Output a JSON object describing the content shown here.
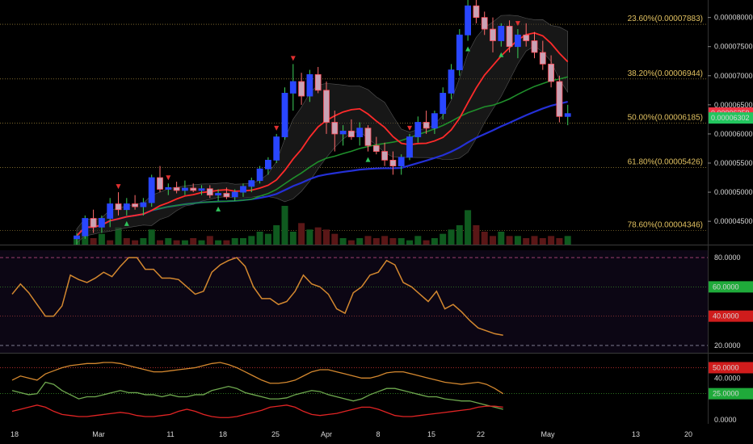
{
  "chart_data": {
    "type": "candlestick",
    "x_labels": [
      "18",
      "Mar",
      "11",
      "18",
      "25",
      "Apr",
      "8",
      "15",
      "22",
      "May",
      "13",
      "20"
    ],
    "price_axis": {
      "ticks": [
        "0.00008000",
        "0.00007500",
        "0.00007000",
        "0.00006500",
        "0.00006000",
        "0.00005500",
        "0.00005000",
        "0.00004500"
      ],
      "ylim": [
        4.1e-05,
        8.3e-05
      ],
      "last_price_label": "0.00006359",
      "other_price_label": "0.00006302",
      "last_price_color": "#f23645",
      "other_price_color": "#22c55e"
    },
    "fib_levels": [
      {
        "label": "23.60%(0.00007883)",
        "value": 7.883e-05
      },
      {
        "label": "38.20%(0.00006944)",
        "value": 6.944e-05
      },
      {
        "label": "50.00%(0.00006185)",
        "value": 6.185e-05
      },
      {
        "label": "61.80%(0.00005426)",
        "value": 5.426e-05
      },
      {
        "label": "78.60%(0.00004346)",
        "value": 4.346e-05
      }
    ],
    "candles": [
      [
        4.2e-05,
        4.3e-05,
        4.1e-05,
        4.25e-05
      ],
      [
        4.25e-05,
        4.6e-05,
        4.2e-05,
        4.55e-05
      ],
      [
        4.55e-05,
        4.7e-05,
        4.3e-05,
        4.4e-05
      ],
      [
        4.4e-05,
        4.6e-05,
        4.3e-05,
        4.55e-05
      ],
      [
        4.55e-05,
        4.9e-05,
        4.4e-05,
        4.8e-05
      ],
      [
        4.8e-05,
        5e-05,
        4.6e-05,
        4.7e-05
      ],
      [
        4.7e-05,
        4.9e-05,
        4.6e-05,
        4.8e-05
      ],
      [
        4.8e-05,
        4.95e-05,
        4.7e-05,
        4.75e-05
      ],
      [
        4.75e-05,
        4.9e-05,
        4.6e-05,
        4.82e-05
      ],
      [
        4.82e-05,
        5.3e-05,
        4.75e-05,
        5.25e-05
      ],
      [
        5.25e-05,
        5.45e-05,
        5e-05,
        5.05e-05
      ],
      [
        5.05e-05,
        5.15e-05,
        4.95e-05,
        5.08e-05
      ],
      [
        5.08e-05,
        5.18e-05,
        4.98e-05,
        5.03e-05
      ],
      [
        5.03e-05,
        5.2e-05,
        4.95e-05,
        5.07e-05
      ],
      [
        5.07e-05,
        5.15e-05,
        5e-05,
        5.03e-05
      ],
      [
        5.03e-05,
        5.12e-05,
        4.95e-05,
        5.06e-05
      ],
      [
        5.06e-05,
        5.12e-05,
        4.9e-05,
        4.95e-05
      ],
      [
        4.95e-05,
        5.05e-05,
        4.85e-05,
        4.98e-05
      ],
      [
        4.98e-05,
        5.08e-05,
        4.88e-05,
        4.92e-05
      ],
      [
        4.92e-05,
        5.05e-05,
        4.85e-05,
        5e-05
      ],
      [
        5e-05,
        5.15e-05,
        4.92e-05,
        5.1e-05
      ],
      [
        5.1e-05,
        5.25e-05,
        5e-05,
        5.2e-05
      ],
      [
        5.2e-05,
        5.45e-05,
        5.15e-05,
        5.4e-05
      ],
      [
        5.4e-05,
        5.6e-05,
        5.3e-05,
        5.55e-05
      ],
      [
        5.55e-05,
        6e-05,
        5.5e-05,
        5.95e-05
      ],
      [
        5.95e-05,
        6.8e-05,
        5.9e-05,
        6.7e-05
      ],
      [
        6.7e-05,
        7.2e-05,
        6.4e-05,
        6.9e-05
      ],
      [
        6.9e-05,
        7.05e-05,
        6.5e-05,
        6.65e-05
      ],
      [
        6.65e-05,
        7.1e-05,
        6.55e-05,
        7.02e-05
      ],
      [
        7.02e-05,
        7.15e-05,
        6.7e-05,
        6.75e-05
      ],
      [
        6.75e-05,
        6.9e-05,
        6e-05,
        6.2e-05
      ],
      [
        6.2e-05,
        6.4e-05,
        5.7e-05,
        6e-05
      ],
      [
        6e-05,
        6.15e-05,
        5.8e-05,
        6.05e-05
      ],
      [
        6.05e-05,
        6.25e-05,
        5.9e-05,
        5.95e-05
      ],
      [
        5.95e-05,
        6.2e-05,
        5.8e-05,
        6.1e-05
      ],
      [
        6.1e-05,
        6.15e-05,
        5.7e-05,
        5.8e-05
      ],
      [
        5.8e-05,
        5.95e-05,
        5.65e-05,
        5.7e-05
      ],
      [
        5.7e-05,
        5.85e-05,
        5.45e-05,
        5.55e-05
      ],
      [
        5.55e-05,
        5.7e-05,
        5.3e-05,
        5.45e-05
      ],
      [
        5.45e-05,
        5.65e-05,
        5.3e-05,
        5.6e-05
      ],
      [
        5.6e-05,
        6e-05,
        5.55e-05,
        5.95e-05
      ],
      [
        5.95e-05,
        6.3e-05,
        5.85e-05,
        6.2e-05
      ],
      [
        6.2e-05,
        6.4e-05,
        6e-05,
        6.1e-05
      ],
      [
        6.1e-05,
        6.4e-05,
        6e-05,
        6.35e-05
      ],
      [
        6.35e-05,
        6.8e-05,
        6.25e-05,
        6.7e-05
      ],
      [
        6.7e-05,
        7.2e-05,
        6.6e-05,
        7.1e-05
      ],
      [
        7.1e-05,
        7.8e-05,
        7e-05,
        7.7e-05
      ],
      [
        7.7e-05,
        8.3e-05,
        7.6e-05,
        8.2e-05
      ],
      [
        8.2e-05,
        8.35e-05,
        7.9e-05,
        8e-05
      ],
      [
        8e-05,
        8.1e-05,
        7.7e-05,
        7.8e-05
      ],
      [
        7.8e-05,
        8e-05,
        7.4e-05,
        7.6e-05
      ],
      [
        7.6e-05,
        7.9e-05,
        7.5e-05,
        7.85e-05
      ],
      [
        7.85e-05,
        7.95e-05,
        7.4e-05,
        7.5e-05
      ],
      [
        7.5e-05,
        7.8e-05,
        7.3e-05,
        7.7e-05
      ],
      [
        7.7e-05,
        7.9e-05,
        7.5e-05,
        7.6e-05
      ],
      [
        7.6e-05,
        7.75e-05,
        7.3e-05,
        7.4e-05
      ],
      [
        7.4e-05,
        7.6e-05,
        7.1e-05,
        7.2e-05
      ],
      [
        7.2e-05,
        7.35e-05,
        6.8e-05,
        6.9e-05
      ],
      [
        6.9e-05,
        7e-05,
        6.2e-05,
        6.3e-05
      ],
      [
        6.3e-05,
        6.5e-05,
        6.15e-05,
        6.35e-05
      ]
    ],
    "volume": [
      4,
      10,
      3,
      5,
      2,
      8,
      3,
      2,
      3,
      7,
      2,
      3,
      2,
      2,
      3,
      2,
      4,
      2,
      2,
      3,
      3,
      4,
      6,
      5,
      9,
      18,
      6,
      10,
      7,
      8,
      7,
      5,
      3,
      2,
      3,
      4,
      3,
      4,
      3,
      3,
      2,
      4,
      2,
      3,
      5,
      7,
      9,
      16,
      9,
      6,
      4,
      6,
      4,
      4,
      3,
      4,
      3,
      4,
      3,
      4
    ],
    "volume_colors": [
      "g",
      "g",
      "r",
      "g",
      "r",
      "g",
      "r",
      "r",
      "g",
      "g",
      "r",
      "g",
      "r",
      "g",
      "r",
      "g",
      "r",
      "g",
      "r",
      "g",
      "g",
      "g",
      "g",
      "g",
      "g",
      "g",
      "g",
      "r",
      "g",
      "r",
      "r",
      "r",
      "g",
      "r",
      "g",
      "r",
      "r",
      "r",
      "r",
      "g",
      "g",
      "g",
      "r",
      "g",
      "g",
      "g",
      "g",
      "g",
      "r",
      "r",
      "r",
      "g",
      "r",
      "g",
      "r",
      "r",
      "r",
      "r",
      "r",
      "g"
    ],
    "markers": [
      {
        "type": "down",
        "bar": 5
      },
      {
        "type": "down",
        "bar": 11
      },
      {
        "type": "down",
        "bar": 24
      },
      {
        "type": "down",
        "bar": 26
      },
      {
        "type": "down",
        "bar": 40
      },
      {
        "type": "down",
        "bar": 53
      },
      {
        "type": "up",
        "bar": 6
      },
      {
        "type": "up",
        "bar": 17
      },
      {
        "type": "up",
        "bar": 35
      },
      {
        "type": "up",
        "bar": 47
      },
      {
        "type": "up",
        "bar": 51
      }
    ],
    "rsi": {
      "ticks": [
        "80.0000",
        "20.0000"
      ],
      "levels": [
        80,
        60,
        40,
        20
      ],
      "level_labels": {
        "l60": "60.0000",
        "l40": "40.0000"
      },
      "ylim": [
        15,
        85
      ],
      "values": [
        55,
        62,
        56,
        48,
        40,
        40,
        47,
        68,
        65,
        63,
        66,
        70,
        67,
        74,
        80,
        80,
        72,
        72,
        66,
        66,
        65,
        60,
        55,
        57,
        70,
        75,
        78,
        80,
        74,
        60,
        52,
        52,
        48,
        50,
        57,
        68,
        62,
        60,
        55,
        45,
        42,
        56,
        60,
        68,
        70,
        78,
        75,
        63,
        60,
        55,
        50,
        57,
        45,
        48,
        43,
        37,
        32,
        30,
        28,
        27
      ]
    },
    "adx": {
      "ticks": [
        "40.0000",
        "0.0000"
      ],
      "levels": [
        50,
        25
      ],
      "level_labels": {
        "l50": "50.0000",
        "l25": "25.0000"
      },
      "ylim": [
        -4,
        62
      ],
      "orange": [
        38,
        42,
        40,
        38,
        44,
        47,
        50,
        52,
        53,
        54,
        54,
        55,
        55,
        54,
        52,
        50,
        48,
        46,
        46,
        47,
        48,
        49,
        50,
        52,
        54,
        55,
        53,
        50,
        46,
        42,
        38,
        35,
        35,
        36,
        38,
        42,
        46,
        48,
        48,
        46,
        44,
        42,
        40,
        40,
        42,
        45,
        46,
        46,
        44,
        42,
        40,
        38,
        36,
        35,
        34,
        35,
        36,
        34,
        30,
        25
      ],
      "green": [
        28,
        26,
        24,
        25,
        36,
        34,
        28,
        24,
        20,
        22,
        22,
        24,
        26,
        28,
        26,
        26,
        24,
        24,
        22,
        24,
        22,
        22,
        24,
        24,
        28,
        30,
        32,
        30,
        26,
        24,
        22,
        20,
        20,
        21,
        24,
        26,
        28,
        27,
        24,
        22,
        20,
        18,
        20,
        24,
        27,
        30,
        30,
        28,
        26,
        24,
        22,
        22,
        20,
        19,
        18,
        18,
        16,
        14,
        12,
        10
      ],
      "red": [
        8,
        10,
        12,
        14,
        12,
        8,
        5,
        4,
        3,
        3,
        4,
        5,
        6,
        7,
        6,
        4,
        3,
        3,
        4,
        5,
        8,
        10,
        8,
        5,
        3,
        2,
        2,
        3,
        5,
        7,
        9,
        12,
        13,
        14,
        12,
        8,
        5,
        4,
        5,
        6,
        8,
        10,
        12,
        12,
        10,
        7,
        4,
        3,
        3,
        4,
        5,
        6,
        7,
        8,
        9,
        10,
        12,
        13,
        13,
        12
      ]
    },
    "colors": {
      "up": "#2946ff",
      "down_border": "#ff4d5a",
      "ma_fast": "#ff2a2a",
      "ma_mid": "#1f8f2b",
      "ma_slow": "#2430d6",
      "fib_line": "#c8a648",
      "rsi_line": "#d4882f",
      "adx_orange": "#d4882f",
      "adx_green": "#6fa94f",
      "adx_red": "#e12424"
    }
  }
}
